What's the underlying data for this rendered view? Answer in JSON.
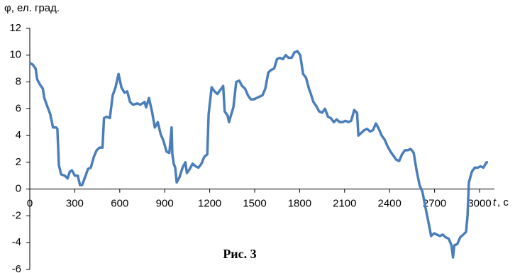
{
  "chart_data": {
    "type": "line",
    "y_label": "φ, ел. град.",
    "x_label_parts": [
      "t",
      ", с"
    ],
    "caption": "Рис. 3",
    "xlim": [
      0,
      3100
    ],
    "xticks": [
      0,
      300,
      600,
      900,
      1200,
      1500,
      1800,
      2100,
      2400,
      2700,
      3000
    ],
    "ylim": [
      -6,
      12
    ],
    "yticks": [
      -6,
      -4,
      -2,
      0,
      2,
      4,
      6,
      8,
      10,
      12
    ],
    "grid": false,
    "series": [
      {
        "color": "#4a7ebb",
        "x": [
          0,
          19,
          39,
          49,
          68,
          87,
          97,
          116,
          136,
          155,
          175,
          184,
          194,
          209,
          233,
          252,
          267,
          281,
          301,
          320,
          335,
          349,
          369,
          388,
          407,
          427,
          446,
          466,
          485,
          495,
          514,
          534,
          553,
          572,
          592,
          611,
          631,
          650,
          669,
          689,
          718,
          737,
          766,
          776,
          795,
          815,
          834,
          854,
          873,
          892,
          912,
          931,
          946,
          951,
          960,
          970,
          980,
          999,
          1019,
          1038,
          1048,
          1067,
          1086,
          1106,
          1125,
          1145,
          1164,
          1184,
          1193,
          1213,
          1232,
          1251,
          1271,
          1290,
          1300,
          1319,
          1329,
          1339,
          1358,
          1377,
          1397,
          1416,
          1436,
          1455,
          1474,
          1494,
          1513,
          1532,
          1552,
          1571,
          1591,
          1610,
          1630,
          1649,
          1668,
          1688,
          1707,
          1726,
          1746,
          1765,
          1785,
          1804,
          1823,
          1843,
          1862,
          1872,
          1892,
          1911,
          1930,
          1950,
          1969,
          1989,
          2008,
          2028,
          2047,
          2067,
          2086,
          2106,
          2125,
          2144,
          2164,
          2183,
          2192,
          2212,
          2231,
          2250,
          2270,
          2289,
          2309,
          2328,
          2347,
          2367,
          2386,
          2406,
          2425,
          2444,
          2464,
          2483,
          2503,
          2522,
          2541,
          2561,
          2580,
          2600,
          2619,
          2638,
          2658,
          2677,
          2697,
          2716,
          2735,
          2755,
          2774,
          2794,
          2813,
          2823,
          2832,
          2852,
          2871,
          2891,
          2910,
          2920,
          2929,
          2949,
          2968,
          2988,
          3007,
          3026,
          3046,
          3056
        ],
        "values": [
          9.4,
          9.3,
          9.0,
          8.2,
          7.8,
          7.5,
          6.8,
          6.2,
          5.6,
          4.6,
          4.6,
          4.5,
          1.8,
          1.1,
          1.0,
          0.8,
          1.3,
          1.4,
          1.0,
          1.0,
          0.3,
          0.3,
          0.9,
          1.5,
          1.6,
          2.4,
          2.9,
          3.1,
          3.1,
          5.3,
          5.4,
          5.3,
          7.0,
          7.6,
          8.6,
          7.6,
          7.2,
          7.3,
          6.5,
          6.3,
          6.4,
          6.3,
          6.5,
          6.1,
          6.8,
          5.8,
          4.6,
          5.0,
          4.1,
          3.6,
          2.8,
          2.7,
          4.6,
          2.6,
          1.9,
          1.6,
          0.5,
          0.9,
          1.6,
          2.0,
          1.2,
          1.5,
          1.9,
          1.7,
          1.6,
          1.9,
          2.4,
          2.6,
          5.6,
          7.6,
          7.3,
          7.1,
          7.4,
          7.7,
          5.8,
          5.5,
          5.0,
          5.4,
          6.1,
          8.0,
          8.1,
          7.7,
          7.5,
          7.0,
          6.7,
          6.7,
          6.8,
          6.9,
          7.0,
          7.5,
          8.7,
          8.9,
          9.0,
          9.7,
          9.8,
          9.7,
          10.0,
          9.8,
          9.8,
          10.2,
          10.3,
          10.0,
          8.6,
          8.3,
          7.5,
          7.2,
          6.5,
          6.2,
          5.8,
          5.7,
          6.0,
          5.4,
          5.3,
          5.0,
          5.2,
          5.0,
          5.0,
          5.1,
          5.0,
          5.1,
          5.9,
          5.7,
          4.0,
          4.2,
          4.4,
          4.5,
          4.3,
          4.4,
          4.9,
          4.5,
          4.0,
          3.7,
          3.2,
          2.8,
          2.5,
          2.2,
          2.1,
          2.6,
          2.9,
          2.9,
          3.0,
          2.7,
          1.4,
          0.3,
          -0.2,
          -1.3,
          -2.4,
          -3.5,
          -3.3,
          -3.4,
          -3.5,
          -3.4,
          -3.6,
          -3.7,
          -4.2,
          -5.1,
          -4.2,
          -4.1,
          -3.6,
          -3.4,
          -3.2,
          -2.0,
          0.5,
          1.3,
          1.6,
          1.6,
          1.7,
          1.6,
          2.0,
          2.0
        ]
      }
    ]
  }
}
